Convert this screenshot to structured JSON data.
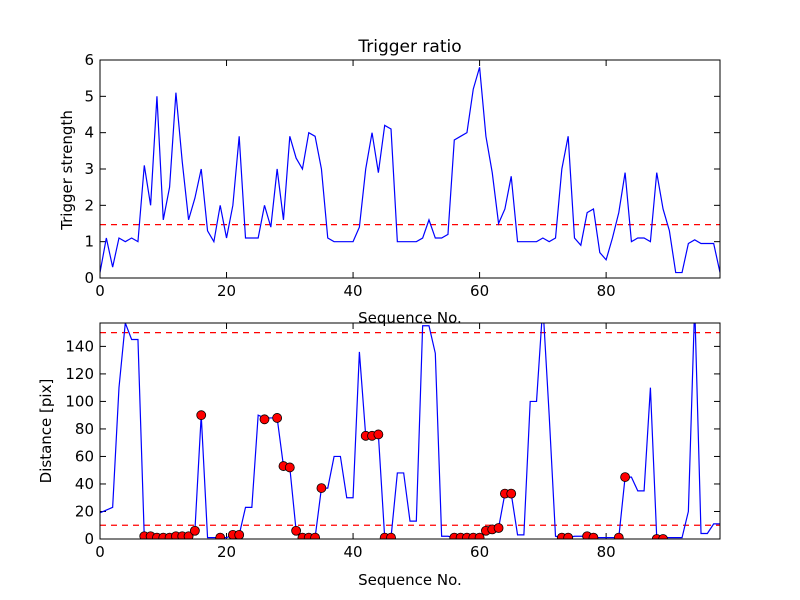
{
  "chart_data": [
    {
      "type": "line",
      "title": "Trigger ratio",
      "xlabel": "Sequence No.",
      "ylabel": "Trigger strength",
      "xlim": [
        0,
        98
      ],
      "ylim": [
        0,
        6
      ],
      "xticks": [
        "0",
        "20",
        "40",
        "60",
        "80"
      ],
      "yticks": [
        "0",
        "1",
        "2",
        "3",
        "4",
        "5",
        "6"
      ],
      "xtick_values": [
        0,
        20,
        40,
        60,
        80
      ],
      "ytick_values": [
        0,
        1,
        2,
        3,
        4,
        5,
        6
      ],
      "grid": false,
      "series": [
        {
          "color": "#0000ff",
          "values": [
            0.15,
            1.1,
            0.3,
            1.1,
            1.0,
            1.1,
            1.0,
            3.1,
            2.0,
            5.0,
            1.6,
            2.5,
            5.1,
            3.2,
            1.6,
            2.2,
            3.0,
            1.3,
            1.0,
            2.0,
            1.1,
            2.0,
            3.9,
            1.1,
            1.1,
            1.1,
            2.0,
            1.4,
            3.0,
            1.6,
            3.9,
            3.3,
            3.0,
            4.0,
            3.9,
            3.0,
            1.1,
            1.0,
            1.0,
            1.0,
            1.0,
            1.4,
            3.0,
            4.0,
            2.9,
            4.2,
            4.1,
            1.0,
            1.0,
            1.0,
            1.0,
            1.1,
            1.6,
            1.1,
            1.1,
            1.2,
            3.8,
            3.9,
            4.0,
            5.2,
            5.8,
            3.9,
            2.9,
            1.5,
            1.9,
            2.8,
            1.0,
            1.0,
            1.0,
            1.0,
            1.1,
            1.0,
            1.1,
            3.0,
            3.9,
            1.1,
            0.9,
            1.8,
            1.9,
            0.7,
            0.5,
            1.1,
            1.8,
            2.9,
            1.0,
            1.1,
            1.1,
            1.0,
            2.9,
            1.9,
            1.3,
            0.15,
            0.15,
            0.95,
            1.05,
            0.95,
            0.95,
            0.95,
            0.15
          ]
        }
      ],
      "hlines": [
        {
          "y": 1.47,
          "color": "#ff0000",
          "style": "dashed"
        }
      ]
    },
    {
      "type": "line",
      "title": "",
      "xlabel": "Sequence No.",
      "ylabel": "Distance [pix]",
      "xlim": [
        0,
        98
      ],
      "ylim": [
        0,
        157
      ],
      "xticks": [
        "0",
        "20",
        "40",
        "60",
        "80"
      ],
      "yticks": [
        "0",
        "20",
        "40",
        "60",
        "80",
        "100",
        "120",
        "140"
      ],
      "xtick_values": [
        0,
        20,
        40,
        60,
        80
      ],
      "ytick_values": [
        0,
        20,
        40,
        60,
        80,
        100,
        120,
        140
      ],
      "grid": false,
      "series": [
        {
          "color": "#0000ff",
          "values": [
            19,
            21,
            23,
            110,
            157,
            145,
            145,
            1,
            1,
            1,
            1,
            1,
            1,
            1,
            1,
            6,
            90,
            1,
            1,
            1,
            1,
            3,
            3,
            23,
            23,
            90,
            88,
            88,
            88,
            53,
            52,
            6,
            1,
            1,
            1,
            37,
            37,
            60,
            60,
            30,
            30,
            136,
            75,
            75,
            76,
            1,
            1,
            48,
            48,
            13,
            13,
            155,
            155,
            135,
            2,
            2,
            1,
            1,
            1,
            1,
            1,
            6,
            7,
            8,
            33,
            33,
            3,
            3,
            100,
            100,
            170,
            90,
            2,
            1,
            1,
            2,
            2,
            2,
            1,
            1,
            1,
            1,
            1,
            45,
            45,
            35,
            35,
            110,
            1,
            1,
            1,
            1,
            1,
            20,
            170,
            4,
            4,
            11,
            11
          ]
        }
      ],
      "markers": {
        "color": "#ff0000",
        "points": [
          [
            7,
            2
          ],
          [
            8,
            2
          ],
          [
            9,
            1
          ],
          [
            10,
            1
          ],
          [
            11,
            1
          ],
          [
            12,
            2
          ],
          [
            13,
            2
          ],
          [
            14,
            2
          ],
          [
            15,
            6
          ],
          [
            16,
            90
          ],
          [
            19,
            1
          ],
          [
            21,
            3
          ],
          [
            22,
            3
          ],
          [
            26,
            87
          ],
          [
            28,
            88
          ],
          [
            29,
            53
          ],
          [
            30,
            52
          ],
          [
            31,
            6
          ],
          [
            32,
            1
          ],
          [
            33,
            1
          ],
          [
            34,
            1
          ],
          [
            35,
            37
          ],
          [
            42,
            75
          ],
          [
            43,
            75
          ],
          [
            44,
            76
          ],
          [
            45,
            1
          ],
          [
            46,
            1
          ],
          [
            56,
            1
          ],
          [
            57,
            1
          ],
          [
            58,
            1
          ],
          [
            59,
            1
          ],
          [
            60,
            1
          ],
          [
            61,
            6
          ],
          [
            62,
            7
          ],
          [
            63,
            8
          ],
          [
            64,
            33
          ],
          [
            65,
            33
          ],
          [
            73,
            1
          ],
          [
            74,
            1
          ],
          [
            77,
            2
          ],
          [
            78,
            1
          ],
          [
            82,
            1
          ],
          [
            83,
            45
          ],
          [
            88,
            0
          ],
          [
            89,
            0
          ]
        ]
      },
      "hlines": [
        {
          "y": 150,
          "color": "#ff0000",
          "style": "dashed"
        },
        {
          "y": 10,
          "color": "#ff0000",
          "style": "dashed"
        }
      ]
    }
  ]
}
